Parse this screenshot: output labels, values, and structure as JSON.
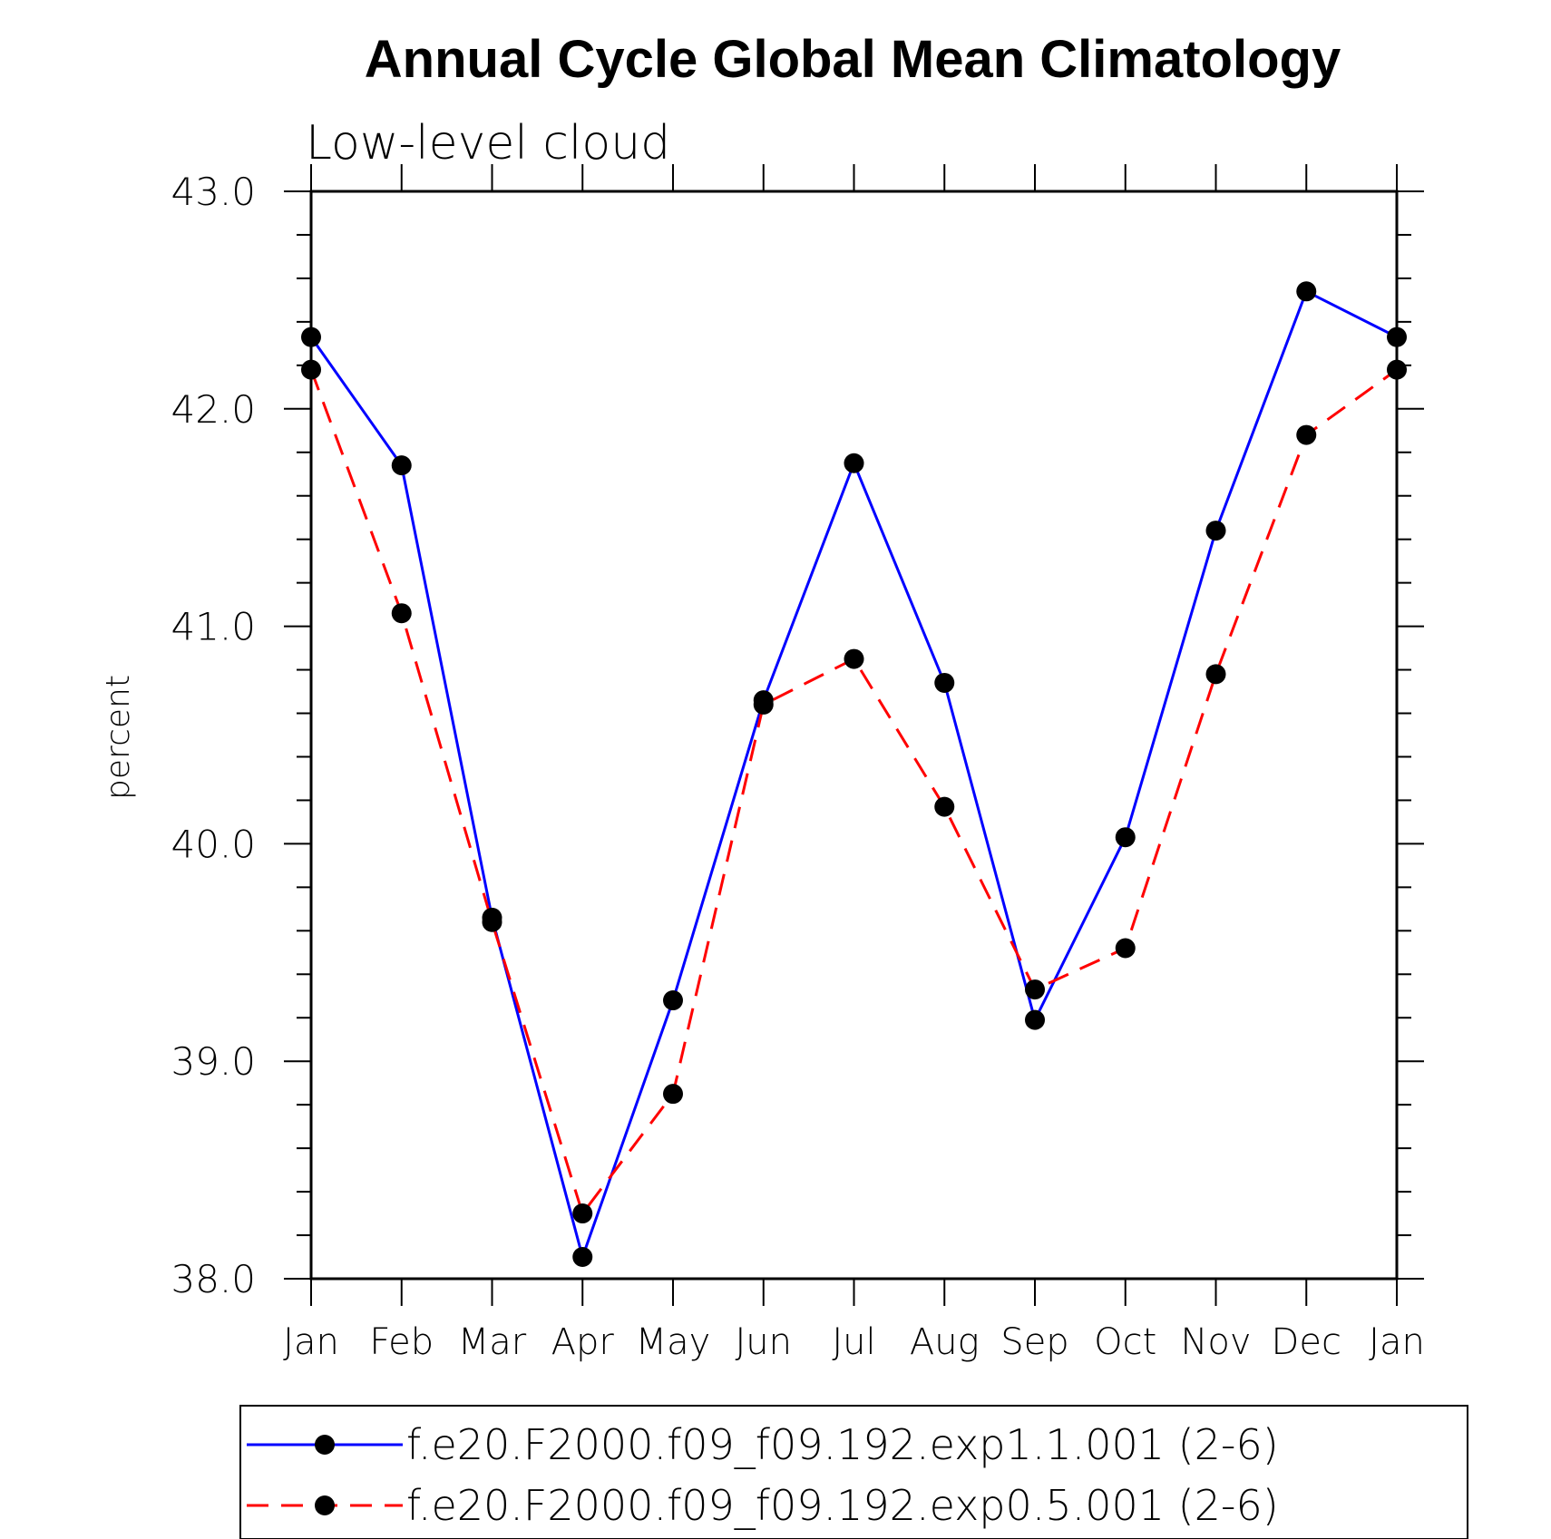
{
  "chart_data": {
    "type": "line",
    "title": "Annual Cycle Global Mean Climatology",
    "subtitle": "Low-level cloud",
    "xlabel": "",
    "ylabel": "percent",
    "categories": [
      "Jan",
      "Feb",
      "Mar",
      "Apr",
      "May",
      "Jun",
      "Jul",
      "Aug",
      "Sep",
      "Oct",
      "Nov",
      "Dec",
      "Jan"
    ],
    "ylim": [
      38.0,
      43.0
    ],
    "yticks": [
      "38.0",
      "39.0",
      "40.0",
      "41.0",
      "42.0",
      "43.0"
    ],
    "series": [
      {
        "name": "f.e20.F2000.f09_f09.192.exp1.1.001 (2-6)",
        "color": "#0000ff",
        "line_style": "solid",
        "values": [
          42.33,
          41.74,
          39.66,
          38.1,
          39.28,
          40.66,
          41.75,
          40.74,
          39.19,
          40.03,
          41.44,
          42.54,
          42.33
        ]
      },
      {
        "name": "f.e20.F2000.f09_f09.192.exp0.5.001 (2-6)",
        "color": "#ff0000",
        "line_style": "dashed",
        "values": [
          42.18,
          41.06,
          39.64,
          38.3,
          38.85,
          40.64,
          40.85,
          40.17,
          39.33,
          39.52,
          40.78,
          41.88,
          42.18
        ]
      }
    ],
    "grid": false,
    "legend": "bottom"
  }
}
